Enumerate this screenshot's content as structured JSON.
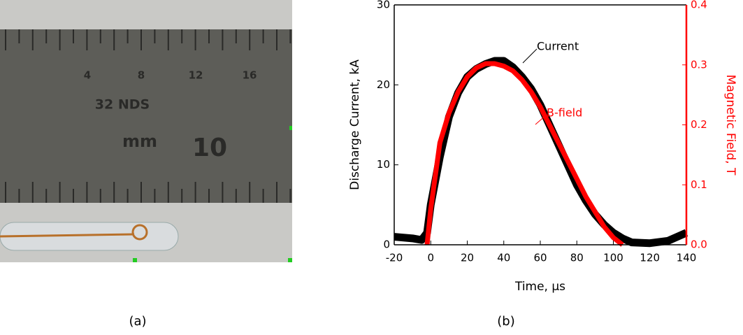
{
  "chart_data": {
    "type": "line",
    "xlabel": "Time, μs",
    "ylabel": "Discharge Current, kA",
    "y2label": "Magnetic Field, T",
    "x": [
      -20,
      -10,
      -5,
      -2,
      0,
      5,
      10,
      15,
      20,
      25,
      30,
      35,
      40,
      45,
      50,
      55,
      60,
      65,
      70,
      75,
      80,
      85,
      90,
      95,
      100,
      105,
      110,
      120,
      130,
      140
    ],
    "series": [
      {
        "name": "Current",
        "color": "#000000",
        "values": [
          1,
          0.8,
          0.6,
          1.5,
          5,
          11,
          16,
          19,
          21,
          22,
          22.6,
          23,
          23,
          22.2,
          21,
          19.5,
          17.5,
          15,
          12.5,
          10,
          7.5,
          5.5,
          3.8,
          2.5,
          1.5,
          0.8,
          0.3,
          0.2,
          0.5,
          1.5
        ]
      },
      {
        "name": "B-field",
        "color": "#ff0000",
        "axis": "y2",
        "values": [
          null,
          null,
          null,
          0,
          0.06,
          0.17,
          0.22,
          0.255,
          0.28,
          0.295,
          0.302,
          0.302,
          0.298,
          0.29,
          0.275,
          0.255,
          0.23,
          0.2,
          0.17,
          0.14,
          0.11,
          0.08,
          0.055,
          0.03,
          0.012,
          0,
          null,
          null,
          null,
          null
        ]
      }
    ],
    "xlim": [
      -20,
      140
    ],
    "xticks": [
      -20,
      0,
      20,
      40,
      60,
      80,
      100,
      120,
      140
    ],
    "ylim": [
      0,
      30
    ],
    "yticks": [
      0,
      10,
      20,
      30
    ],
    "y2lim": [
      0,
      0.4
    ],
    "y2ticks": [
      {
        "value": 0,
        "label": "0.0"
      },
      {
        "value": 0.1,
        "label": "0.1"
      },
      {
        "value": 0.2,
        "label": "0.2"
      },
      {
        "value": 0.3,
        "label": "0.3"
      },
      {
        "value": 0.4,
        "label": "0.4"
      }
    ],
    "y2color": "#ff0000"
  },
  "photo": {
    "ruler_labels": [
      "4",
      "8",
      "12",
      "16"
    ],
    "ruler_brand": "32 NDS",
    "ruler_unit": "mm",
    "ruler_big": "10"
  },
  "captions": [
    "(a)",
    "(b)"
  ]
}
